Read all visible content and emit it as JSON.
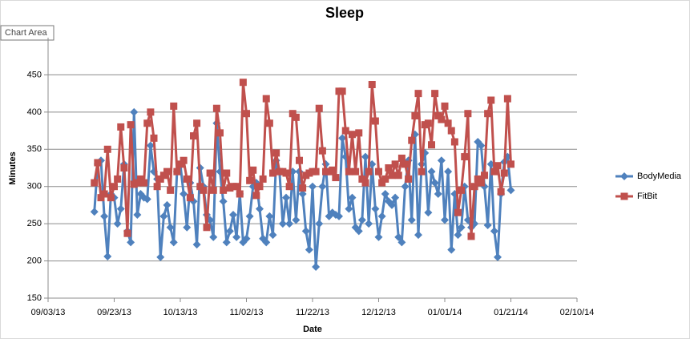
{
  "tooltip": "Chart Area",
  "chart_data": {
    "type": "line",
    "title": "Sleep",
    "x_label": "Date",
    "y_label": "Minutes",
    "x": [
      "09/17/13",
      "09/18/13",
      "09/19/13",
      "09/20/13",
      "09/21/13",
      "09/22/13",
      "09/23/13",
      "09/24/13",
      "09/25/13",
      "09/26/13",
      "09/27/13",
      "09/28/13",
      "09/29/13",
      "09/30/13",
      "10/01/13",
      "10/02/13",
      "10/03/13",
      "10/04/13",
      "10/05/13",
      "10/06/13",
      "10/07/13",
      "10/08/13",
      "10/09/13",
      "10/10/13",
      "10/11/13",
      "10/12/13",
      "10/13/13",
      "10/14/13",
      "10/15/13",
      "10/16/13",
      "10/17/13",
      "10/18/13",
      "10/19/13",
      "10/20/13",
      "10/21/13",
      "10/22/13",
      "10/23/13",
      "10/24/13",
      "10/25/13",
      "10/26/13",
      "10/27/13",
      "10/28/13",
      "10/29/13",
      "10/30/13",
      "10/31/13",
      "11/01/13",
      "11/02/13",
      "11/03/13",
      "11/04/13",
      "11/05/13",
      "11/06/13",
      "11/07/13",
      "11/08/13",
      "11/09/13",
      "11/10/13",
      "11/11/13",
      "11/12/13",
      "11/13/13",
      "11/14/13",
      "11/15/13",
      "11/16/13",
      "11/17/13",
      "11/18/13",
      "11/19/13",
      "11/20/13",
      "11/21/13",
      "11/22/13",
      "11/23/13",
      "11/24/13",
      "11/25/13",
      "11/26/13",
      "11/27/13",
      "11/28/13",
      "11/29/13",
      "11/30/13",
      "12/01/13",
      "12/02/13",
      "12/03/13",
      "12/04/13",
      "12/05/13",
      "12/06/13",
      "12/07/13",
      "12/08/13",
      "12/09/13",
      "12/10/13",
      "12/11/13",
      "12/12/13",
      "12/13/13",
      "12/14/13",
      "12/15/13",
      "12/16/13",
      "12/17/13",
      "12/18/13",
      "12/19/13",
      "12/20/13",
      "12/21/13",
      "12/22/13",
      "12/23/13",
      "12/24/13",
      "12/25/13",
      "12/26/13",
      "12/27/13",
      "12/28/13",
      "12/29/13",
      "12/30/13",
      "12/31/13",
      "01/01/14",
      "01/02/14",
      "01/03/14",
      "01/04/14",
      "01/05/14",
      "01/06/14",
      "01/07/14",
      "01/08/14",
      "01/09/14",
      "01/10/14",
      "01/11/14",
      "01/12/14",
      "01/13/14",
      "01/14/14",
      "01/15/14",
      "01/16/14",
      "01/17/14",
      "01/18/14",
      "01/19/14",
      "01/20/14",
      "01/21/14"
    ],
    "series": [
      {
        "name": "BodyMedia",
        "color": "#4f81bd",
        "marker": "diamond",
        "values": [
          266,
          330,
          335,
          260,
          206,
          290,
          285,
          250,
          270,
          330,
          240,
          225,
          400,
          262,
          290,
          285,
          283,
          355,
          320,
          310,
          205,
          260,
          275,
          245,
          225,
          320,
          330,
          290,
          245,
          305,
          280,
          222,
          325,
          300,
          262,
          255,
          232,
          385,
          320,
          280,
          225,
          240,
          262,
          232,
          290,
          225,
          230,
          260,
          300,
          305,
          270,
          230,
          225,
          260,
          235,
          335,
          320,
          250,
          285,
          250,
          320,
          255,
          320,
          290,
          240,
          215,
          300,
          192,
          250,
          300,
          330,
          260,
          265,
          262,
          260,
          365,
          340,
          270,
          285,
          245,
          240,
          255,
          340,
          250,
          330,
          270,
          232,
          260,
          290,
          280,
          275,
          285,
          232,
          225,
          300,
          335,
          255,
          370,
          235,
          330,
          345,
          265,
          320,
          305,
          290,
          335,
          255,
          320,
          215,
          290,
          235,
          245,
          300,
          255,
          245,
          250,
          360,
          355,
          300,
          248,
          330,
          240,
          205,
          290,
          333,
          340,
          295
        ]
      },
      {
        "name": "FitBit",
        "color": "#c0504d",
        "marker": "square",
        "values": [
          305,
          332,
          285,
          290,
          350,
          285,
          300,
          310,
          380,
          325,
          237,
          383,
          303,
          305,
          310,
          305,
          385,
          400,
          365,
          300,
          310,
          315,
          320,
          295,
          408,
          320,
          330,
          335,
          310,
          285,
          368,
          385,
          300,
          295,
          245,
          318,
          295,
          405,
          372,
          295,
          318,
          298,
          300,
          300,
          290,
          440,
          398,
          308,
          322,
          288,
          300,
          310,
          418,
          385,
          318,
          345,
          320,
          320,
          318,
          300,
          398,
          393,
          335,
          298,
          315,
          318,
          320,
          320,
          405,
          348,
          320,
          320,
          322,
          312,
          428,
          428,
          375,
          320,
          370,
          320,
          372,
          310,
          305,
          320,
          437,
          388,
          320,
          305,
          310,
          325,
          315,
          330,
          315,
          338,
          330,
          310,
          362,
          395,
          425,
          320,
          383,
          385,
          356,
          425,
          395,
          390,
          408,
          385,
          375,
          360,
          265,
          295,
          340,
          398,
          233,
          300,
          310,
          305,
          315,
          398,
          416,
          320,
          328,
          293,
          318,
          418,
          330
        ]
      }
    ],
    "xlim": [
      "09/03/13",
      "02/10/14"
    ],
    "xticks": [
      "09/03/13",
      "09/23/13",
      "10/13/13",
      "11/02/13",
      "11/22/13",
      "12/12/13",
      "01/01/14",
      "01/21/14",
      "02/10/14"
    ],
    "ylim": [
      150,
      500
    ],
    "yticks": [
      150,
      200,
      250,
      300,
      350,
      400,
      450
    ],
    "grid": true,
    "legend": "right"
  }
}
